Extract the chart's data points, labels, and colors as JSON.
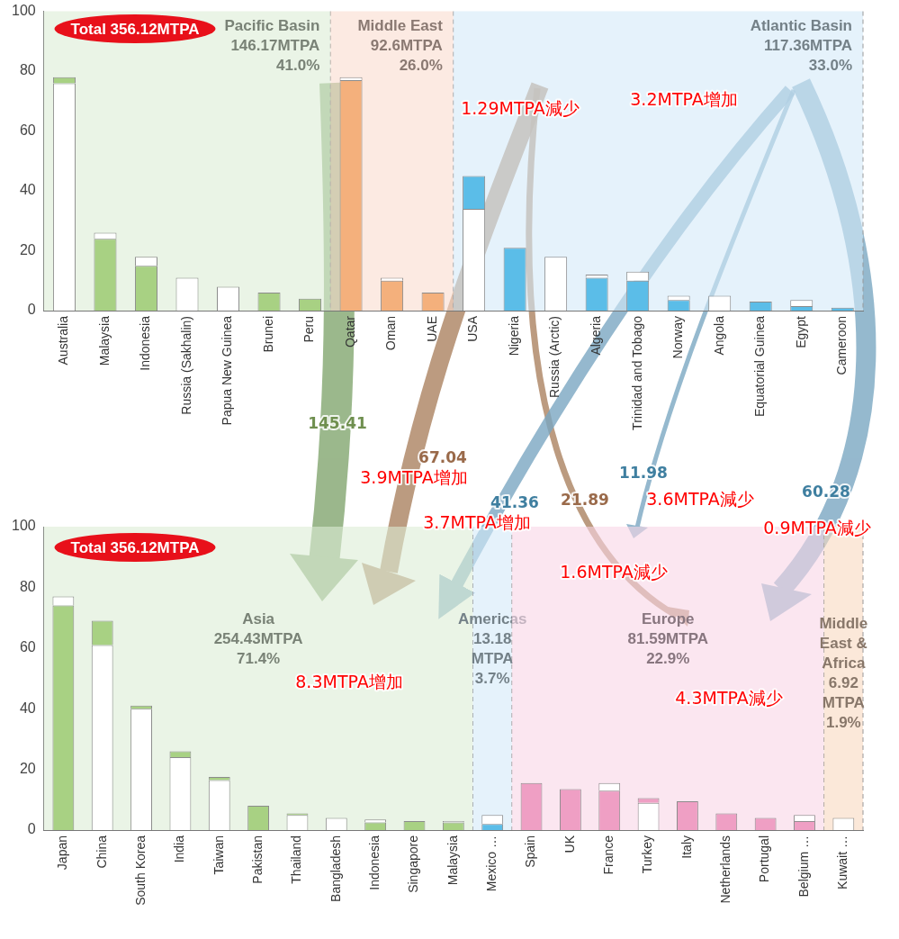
{
  "chart_data": [
    {
      "type": "bar",
      "stacked": true,
      "grid": false,
      "legend": false,
      "ylim": [
        0,
        100
      ],
      "yticks": [
        0,
        20,
        40,
        60,
        80,
        100
      ],
      "categories": [
        "Australia",
        "Malaysia",
        "Indonesia",
        "Russia (Sakhalin)",
        "Papua New Guinea",
        "Brunei",
        "Peru",
        "Qatar",
        "Oman",
        "UAE",
        "USA",
        "Nigeria",
        "Russia (Arctic)",
        "Algeria",
        "Trinidad and Tobago",
        "Norway",
        "Angola",
        "Equatorial Guinea",
        "Egypt",
        "Cameroon"
      ],
      "series": [
        {
          "values": [
            76,
            24,
            15,
            11,
            8,
            6,
            4,
            77,
            10,
            6,
            34,
            21,
            18,
            11,
            10,
            3.5,
            5,
            3,
            1.5,
            1
          ],
          "colors": [
            "#ffffff",
            "#a8d183",
            "#a8d183",
            "#ffffff",
            "#ffffff",
            "#a8d183",
            "#a8d183",
            "#f4b07c",
            "#f4b07c",
            "#f4b07c",
            "#ffffff",
            "#5bbde8",
            "#ffffff",
            "#5bbde8",
            "#5bbde8",
            "#5bbde8",
            "#ffffff",
            "#5bbde8",
            "#5bbde8",
            "#5bbde8"
          ]
        },
        {
          "values": [
            2,
            2,
            3,
            null,
            null,
            null,
            null,
            1,
            1,
            null,
            11,
            null,
            null,
            1,
            3,
            1.5,
            null,
            null,
            2,
            null
          ],
          "colors": [
            "#a8d183",
            "#ffffff",
            "#ffffff",
            "#a8d183",
            "#a8d183",
            "#a8d183",
            "#a8d183",
            "#ffffff",
            "#ffffff",
            "#f4b07c",
            "#5bbde8",
            "#5bbde8",
            "#5bbde8",
            "#ffffff",
            "#ffffff",
            "#ffffff",
            "#5bbde8",
            "#5bbde8",
            "#ffffff",
            "#5bbde8"
          ]
        }
      ],
      "bands": [
        {
          "axis": "x",
          "from": "Australia",
          "to": "Peru",
          "label": "Pacific Basin\n146.17MTPA\n41.0%",
          "color": "#dcecd6"
        },
        {
          "axis": "x",
          "from": "Qatar",
          "to": "UAE",
          "label": "Middle East\n92.6MTPA\n26.0%",
          "color": "#fadccf"
        },
        {
          "axis": "x",
          "from": "USA",
          "to": "Cameroon",
          "label": "Atlantic Basin\n117.36MTPA\n33.0%",
          "color": "#d3eaf8"
        }
      ],
      "annotations": [
        "Total 356.12MTPA",
        "1.29MTPA減少",
        "3.2MTPA增加"
      ]
    },
    {
      "type": "bar",
      "stacked": true,
      "grid": false,
      "legend": false,
      "ylim": [
        0,
        100
      ],
      "yticks": [
        0,
        20,
        40,
        60,
        80,
        100
      ],
      "categories": [
        "Japan",
        "China",
        "South Korea",
        "India",
        "Taiwan",
        "Pakistan",
        "Thailand",
        "Bangladesh",
        "Indonesia",
        "Singapore",
        "Malaysia",
        "Mexico …",
        "Spain",
        "UK",
        "France",
        "Turkey",
        "Italy",
        "Netherlands",
        "Portugal",
        "Belgium …",
        "Kuwait …"
      ],
      "series": [
        {
          "values": [
            74,
            61,
            40,
            24,
            16.5,
            8,
            5,
            4,
            2.5,
            3,
            2.5,
            2,
            15.5,
            13.5,
            13,
            9,
            9.5,
            5.5,
            4,
            3,
            4
          ],
          "colors": [
            "#a8d183",
            "#ffffff",
            "#ffffff",
            "#ffffff",
            "#ffffff",
            "#a8d183",
            "#ffffff",
            "#ffffff",
            "#a8d183",
            "#a8d183",
            "#a8d183",
            "#5bbde8",
            "#ef9fc4",
            "#ef9fc4",
            "#ef9fc4",
            "#ffffff",
            "#ef9fc4",
            "#ef9fc4",
            "#ef9fc4",
            "#ef9fc4",
            "#ffffff"
          ]
        },
        {
          "values": [
            3,
            8,
            1,
            2,
            1,
            null,
            0.5,
            null,
            1,
            null,
            0.5,
            3,
            null,
            null,
            2.5,
            1.5,
            null,
            null,
            null,
            2,
            null
          ],
          "colors": [
            "#ffffff",
            "#a8d183",
            "#a8d183",
            "#a8d183",
            "#a8d183",
            "#a8d183",
            "#a8d183",
            "#a8d183",
            "#ffffff",
            "#ffffff",
            "#ffffff",
            "#ffffff",
            "#ef9fc4",
            "#ef9fc4",
            "#ffffff",
            "#ef9fc4",
            "#ef9fc4",
            "#ef9fc4",
            "#ef9fc4",
            "#ffffff",
            "#ffffff"
          ]
        }
      ],
      "bands": [
        {
          "axis": "x",
          "from": "Japan",
          "to": "Malaysia",
          "label": "Asia\n254.43MTPA\n71.4%",
          "color": "#dcecd6"
        },
        {
          "axis": "x",
          "from": "Mexico …",
          "to": "Mexico …",
          "label": "Americas\n13.18\nMTPA\n3.7%",
          "color": "#d3eaf8"
        },
        {
          "axis": "x",
          "from": "Spain",
          "to": "Belgium …",
          "label": "Europe\n81.59MTPA\n22.9%",
          "color": "#f8d6e6"
        },
        {
          "axis": "x",
          "from": "Kuwait …",
          "to": "Kuwait …",
          "label": "Middle\nEast &\nAfrica\n6.92\nMTPA\n1.9%",
          "color": "#f8d9c0"
        }
      ],
      "annotations": [
        "Total 356.12MTPA",
        "145.41",
        "67.04",
        "3.9MTPA增加",
        "41.36",
        "21.89",
        "3.7MTPA增加",
        "11.98",
        "3.6MTPA減少",
        "60.28",
        "0.9MTPA減少",
        "1.6MTPA減少",
        "8.3MTPA增加",
        "4.3MTPA減少"
      ]
    }
  ]
}
